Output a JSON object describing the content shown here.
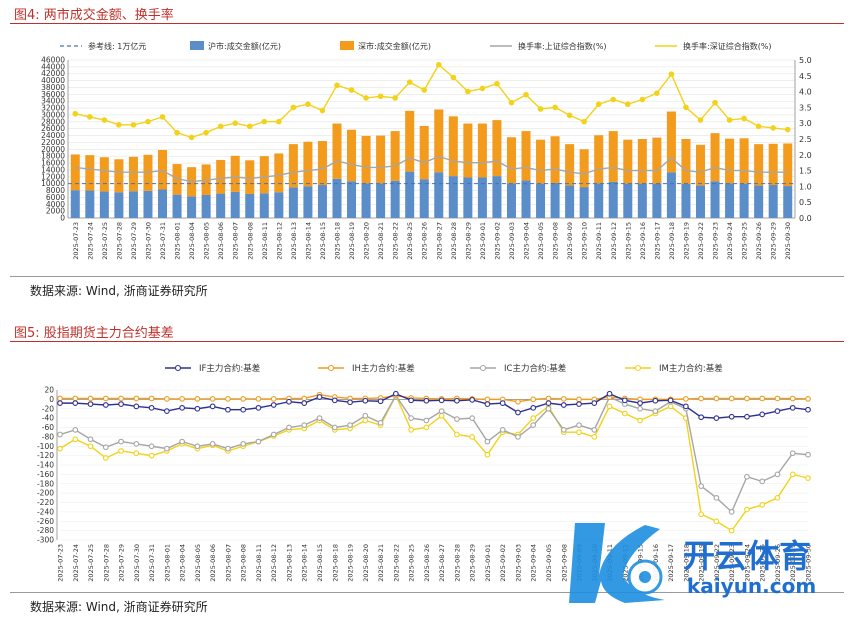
{
  "figure1": {
    "title": "图4:   两市成交金额、换手率",
    "source": "数据来源:  Wind, 浙商证券研究所"
  },
  "figure2": {
    "title": "图5:   股指期货主力合约基差",
    "source": "数据来源:  Wind, 浙商证券研究所"
  },
  "watermark": {
    "brand_cn": "开云体育",
    "brand_en": "kaiyun.com"
  },
  "colors": {
    "ref": "#4472c4",
    "sh_bar": "#5b8dc8",
    "sz_bar": "#f29b1d",
    "sh_turn": "#a6a6a6",
    "sz_turn": "#f2d21a",
    "IF": "#2e3192",
    "IH": "#f29b1d",
    "IC": "#a6a6a6",
    "IM": "#f2d21a"
  },
  "chart_data": [
    {
      "type": "bar",
      "subtype": "stacked bar + line (dual axis)",
      "categories": [
        "2025-07-23",
        "2025-07-24",
        "2025-07-25",
        "2025-07-28",
        "2025-07-29",
        "2025-07-30",
        "2025-07-31",
        "2025-08-01",
        "2025-08-04",
        "2025-08-05",
        "2025-08-06",
        "2025-08-07",
        "2025-08-08",
        "2025-08-11",
        "2025-08-12",
        "2025-08-13",
        "2025-08-14",
        "2025-08-15",
        "2025-08-18",
        "2025-08-19",
        "2025-08-20",
        "2025-08-21",
        "2025-08-22",
        "2025-08-25",
        "2025-08-26",
        "2025-08-27",
        "2025-08-28",
        "2025-08-29",
        "2025-09-01",
        "2025-09-02",
        "2025-09-03",
        "2025-09-04",
        "2025-09-05",
        "2025-09-08",
        "2025-09-09",
        "2025-09-10",
        "2025-09-11",
        "2025-09-12",
        "2025-09-15",
        "2025-09-16",
        "2025-09-17",
        "2025-09-18",
        "2025-09-19",
        "2025-09-22",
        "2025-09-23",
        "2025-09-24",
        "2025-09-25",
        "2025-09-26",
        "2025-09-29",
        "2025-09-30"
      ],
      "yticks_left": [
        "0",
        "2000",
        "4000",
        "6000",
        "8000",
        "10000",
        "12000",
        "14000",
        "16000",
        "18000",
        "20000",
        "22000",
        "24000",
        "26000",
        "28000",
        "30000",
        "32000",
        "34000",
        "36000",
        "38000",
        "40000",
        "42000",
        "44000",
        "46000"
      ],
      "yticks_right": [
        "0.0",
        "0.5",
        "1.0",
        "1.5",
        "2.0",
        "2.5",
        "3.0",
        "3.5",
        "4.0",
        "4.5",
        "5.0"
      ],
      "ylim_left": [
        0,
        46000
      ],
      "ylim_right": [
        0,
        5.0
      ],
      "legend_position": "top",
      "series": [
        {
          "name": "参考线: 1万亿元",
          "kind": "dashed-line",
          "axis": "left",
          "values": [
            10000,
            10000,
            10000,
            10000,
            10000,
            10000,
            10000,
            10000,
            10000,
            10000,
            10000,
            10000,
            10000,
            10000,
            10000,
            10000,
            10000,
            10000,
            10000,
            10000,
            10000,
            10000,
            10000,
            10000,
            10000,
            10000,
            10000,
            10000,
            10000,
            10000,
            10000,
            10000,
            10000,
            10000,
            10000,
            10000,
            10000,
            10000,
            10000,
            10000,
            10000,
            10000,
            10000,
            10000,
            10000,
            10000,
            10000,
            10000,
            10000,
            10000
          ]
        },
        {
          "name": "沪市:成交金额(亿元)",
          "kind": "bar",
          "axis": "left",
          "values": [
            8100,
            8000,
            7700,
            7500,
            7800,
            7900,
            8300,
            6800,
            6300,
            6700,
            7100,
            7600,
            7000,
            7200,
            7500,
            8900,
            9200,
            9600,
            11400,
            10700,
            10100,
            10100,
            10800,
            13500,
            11300,
            13300,
            12200,
            11800,
            11800,
            12200,
            10100,
            10900,
            10000,
            10200,
            9500,
            9000,
            10100,
            10500,
            10000,
            10000,
            10000,
            13300,
            9900,
            9500,
            10700,
            10100,
            10000,
            9500,
            9600,
            9300
          ]
        },
        {
          "name": "深市:成交金额(亿元)",
          "kind": "bar",
          "axis": "left",
          "values": [
            10400,
            10300,
            10000,
            9600,
            10000,
            10500,
            11500,
            8900,
            8500,
            8900,
            9800,
            10500,
            9800,
            10800,
            11300,
            12600,
            13000,
            12800,
            16100,
            15000,
            13800,
            13900,
            14500,
            17700,
            15500,
            18300,
            17400,
            15700,
            15700,
            16300,
            13400,
            14400,
            12800,
            13600,
            12000,
            11000,
            14000,
            14800,
            12800,
            13000,
            13400,
            17700,
            13100,
            11800,
            14000,
            13000,
            13200,
            12000,
            12000,
            12400
          ]
        },
        {
          "name": "换手率:上证综合指数(%)",
          "kind": "line",
          "axis": "right",
          "values": [
            1.6,
            1.55,
            1.5,
            1.45,
            1.45,
            1.45,
            1.5,
            1.25,
            1.15,
            1.2,
            1.25,
            1.3,
            1.25,
            1.3,
            1.35,
            1.45,
            1.5,
            1.55,
            1.8,
            1.7,
            1.6,
            1.6,
            1.65,
            1.9,
            1.75,
            1.95,
            1.8,
            1.75,
            1.75,
            1.8,
            1.55,
            1.6,
            1.5,
            1.55,
            1.45,
            1.4,
            1.55,
            1.6,
            1.5,
            1.5,
            1.5,
            1.9,
            1.5,
            1.45,
            1.6,
            1.5,
            1.5,
            1.45,
            1.45,
            1.45
          ]
        },
        {
          "name": "换手率:深证综合指数(%)",
          "kind": "line",
          "axis": "right",
          "values": [
            3.3,
            3.2,
            3.1,
            2.95,
            2.95,
            3.05,
            3.2,
            2.7,
            2.55,
            2.7,
            2.9,
            3.0,
            2.9,
            3.05,
            3.05,
            3.5,
            3.6,
            3.4,
            4.2,
            4.05,
            3.8,
            3.85,
            3.8,
            4.3,
            4.05,
            4.85,
            4.45,
            4.0,
            4.1,
            4.25,
            3.65,
            3.9,
            3.45,
            3.5,
            3.25,
            3.05,
            3.6,
            3.75,
            3.6,
            3.75,
            3.95,
            4.55,
            3.5,
            3.1,
            3.65,
            3.1,
            3.15,
            2.9,
            2.85,
            2.8
          ]
        }
      ]
    },
    {
      "type": "line",
      "categories": [
        "2025-07-23",
        "2025-07-24",
        "2025-07-25",
        "2025-07-28",
        "2025-07-29",
        "2025-07-30",
        "2025-07-31",
        "2025-08-01",
        "2025-08-04",
        "2025-08-05",
        "2025-08-06",
        "2025-08-07",
        "2025-08-08",
        "2025-08-11",
        "2025-08-12",
        "2025-08-13",
        "2025-08-14",
        "2025-08-15",
        "2025-08-18",
        "2025-08-19",
        "2025-08-20",
        "2025-08-21",
        "2025-08-22",
        "2025-08-25",
        "2025-08-26",
        "2025-08-27",
        "2025-08-28",
        "2025-08-29",
        "2025-09-01",
        "2025-09-02",
        "2025-09-03",
        "2025-09-04",
        "2025-09-05",
        "2025-09-08",
        "2025-09-09",
        "2025-09-10",
        "2025-09-11",
        "2025-09-12",
        "2025-09-15",
        "2025-09-16",
        "2025-09-17",
        "2025-09-18",
        "2025-09-19",
        "2025-09-22",
        "2025-09-23",
        "2025-09-24",
        "2025-09-25",
        "2025-09-26",
        "2025-09-29",
        "2025-09-30"
      ],
      "yticks": [
        "20",
        "0",
        "-20",
        "-40",
        "-60",
        "-80",
        "-100",
        "-120",
        "-140",
        "-160",
        "-180",
        "-200",
        "-220",
        "-240",
        "-260",
        "-280",
        "-300"
      ],
      "ylim": [
        -300,
        20
      ],
      "legend_position": "top",
      "series": [
        {
          "name": "IF主力合约:基差",
          "values": [
            -8,
            -8,
            -10,
            -12,
            -10,
            -15,
            -18,
            -25,
            -18,
            -20,
            -15,
            -22,
            -22,
            -18,
            -12,
            -5,
            -8,
            5,
            -2,
            -6,
            -3,
            -4,
            12,
            -2,
            -3,
            -2,
            -3,
            -1,
            -10,
            -8,
            -28,
            -18,
            -8,
            -12,
            -10,
            -8,
            12,
            -2,
            -8,
            -3,
            -2,
            -15,
            -38,
            -40,
            -37,
            -37,
            -32,
            -25,
            -18,
            -22
          ]
        },
        {
          "name": "IH主力合约:基差",
          "values": [
            2,
            2,
            2,
            2,
            2,
            2,
            2,
            1,
            1,
            1,
            1,
            1,
            1,
            1,
            1,
            2,
            2,
            10,
            5,
            2,
            2,
            3,
            8,
            3,
            2,
            1,
            2,
            1,
            0,
            0,
            -5,
            0,
            2,
            1,
            0,
            0,
            5,
            2,
            0,
            0,
            0,
            1,
            2,
            2,
            2,
            2,
            2,
            2,
            2,
            1
          ]
        },
        {
          "name": "IC主力合约:基差",
          "values": [
            -75,
            -65,
            -85,
            -102,
            -90,
            -95,
            -100,
            -105,
            -90,
            -100,
            -95,
            -105,
            -95,
            -90,
            -75,
            -60,
            -55,
            -40,
            -60,
            -55,
            -35,
            -50,
            8,
            -40,
            -45,
            -25,
            -42,
            -40,
            -90,
            -65,
            -80,
            -55,
            -20,
            -65,
            -55,
            -65,
            5,
            -10,
            -20,
            -25,
            -5,
            -20,
            -185,
            -210,
            -240,
            -165,
            -175,
            -160,
            -115,
            -118
          ]
        },
        {
          "name": "IM主力合约:基差",
          "values": [
            -105,
            -85,
            -100,
            -125,
            -110,
            -115,
            -120,
            -110,
            -95,
            -105,
            -98,
            -110,
            -100,
            -90,
            -78,
            -65,
            -62,
            -45,
            -65,
            -62,
            -45,
            -55,
            8,
            -65,
            -60,
            -35,
            -75,
            -80,
            -118,
            -70,
            -75,
            -40,
            -15,
            -70,
            -70,
            -80,
            -15,
            -30,
            -45,
            -30,
            -15,
            -40,
            -245,
            -260,
            -280,
            -235,
            -225,
            -210,
            -160,
            -168
          ]
        }
      ]
    }
  ]
}
